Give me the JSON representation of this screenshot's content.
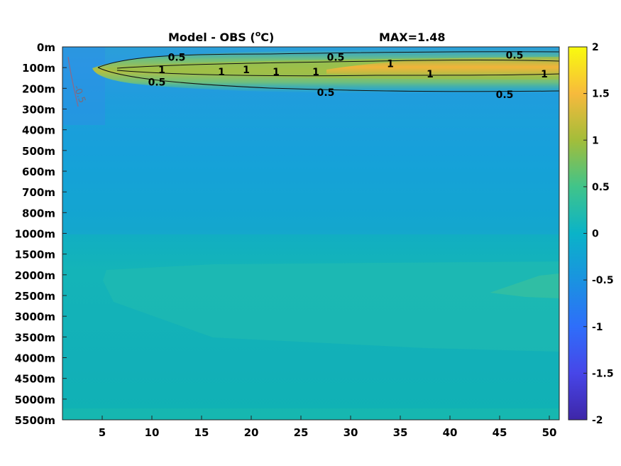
{
  "chart_data": {
    "type": "heatmap",
    "title_left": "Model - OBS (",
    "title_deg": "o",
    "title_unit": "C)",
    "title_max": "MAX=1.48",
    "x_ticks": [
      "5",
      "10",
      "15",
      "20",
      "25",
      "30",
      "35",
      "40",
      "45",
      "50"
    ],
    "x_tick_values": [
      5,
      10,
      15,
      20,
      25,
      30,
      35,
      40,
      45,
      50
    ],
    "xlim": [
      1,
      51
    ],
    "y_ticks": [
      "0m",
      "100m",
      "200m",
      "300m",
      "400m",
      "500m",
      "600m",
      "700m",
      "800m",
      "1000m",
      "1500m",
      "2000m",
      "2500m",
      "3000m",
      "3500m",
      "4000m",
      "4500m",
      "5000m",
      "5500m"
    ],
    "colorbar": {
      "ticks": [
        "2",
        "1.5",
        "1",
        "0.5",
        "0",
        "-0.5",
        "-1",
        "-1.5",
        "-2"
      ],
      "tick_values": [
        2,
        1.5,
        1,
        0.5,
        0,
        -0.5,
        -1,
        -1.5,
        -2
      ],
      "range": [
        -2,
        2
      ],
      "colormap": "parula"
    },
    "contour_labels": [
      {
        "text": "0.5",
        "x": 12.5,
        "depth_index": 0.5
      },
      {
        "text": "0.5",
        "x": 28.5,
        "depth_index": 0.5
      },
      {
        "text": "0.5",
        "x": 46.5,
        "depth_index": 0.4
      },
      {
        "text": "1",
        "x": 11,
        "depth_index": 1.1
      },
      {
        "text": "1",
        "x": 17,
        "depth_index": 1.2
      },
      {
        "text": "1",
        "x": 19.5,
        "depth_index": 1.1
      },
      {
        "text": "1",
        "x": 22.5,
        "depth_index": 1.2
      },
      {
        "text": "1",
        "x": 26.5,
        "depth_index": 1.2
      },
      {
        "text": "1",
        "x": 34,
        "depth_index": 0.8
      },
      {
        "text": "1",
        "x": 38,
        "depth_index": 1.3
      },
      {
        "text": "1",
        "x": 49.5,
        "depth_index": 1.3
      },
      {
        "text": "0.5",
        "x": 10.5,
        "depth_index": 1.7
      },
      {
        "text": "0.5",
        "x": 27.5,
        "depth_index": 2.2
      },
      {
        "text": "0.5",
        "x": 45.5,
        "depth_index": 2.3
      }
    ],
    "negative_contour_label": "-0.5",
    "grid": false
  }
}
